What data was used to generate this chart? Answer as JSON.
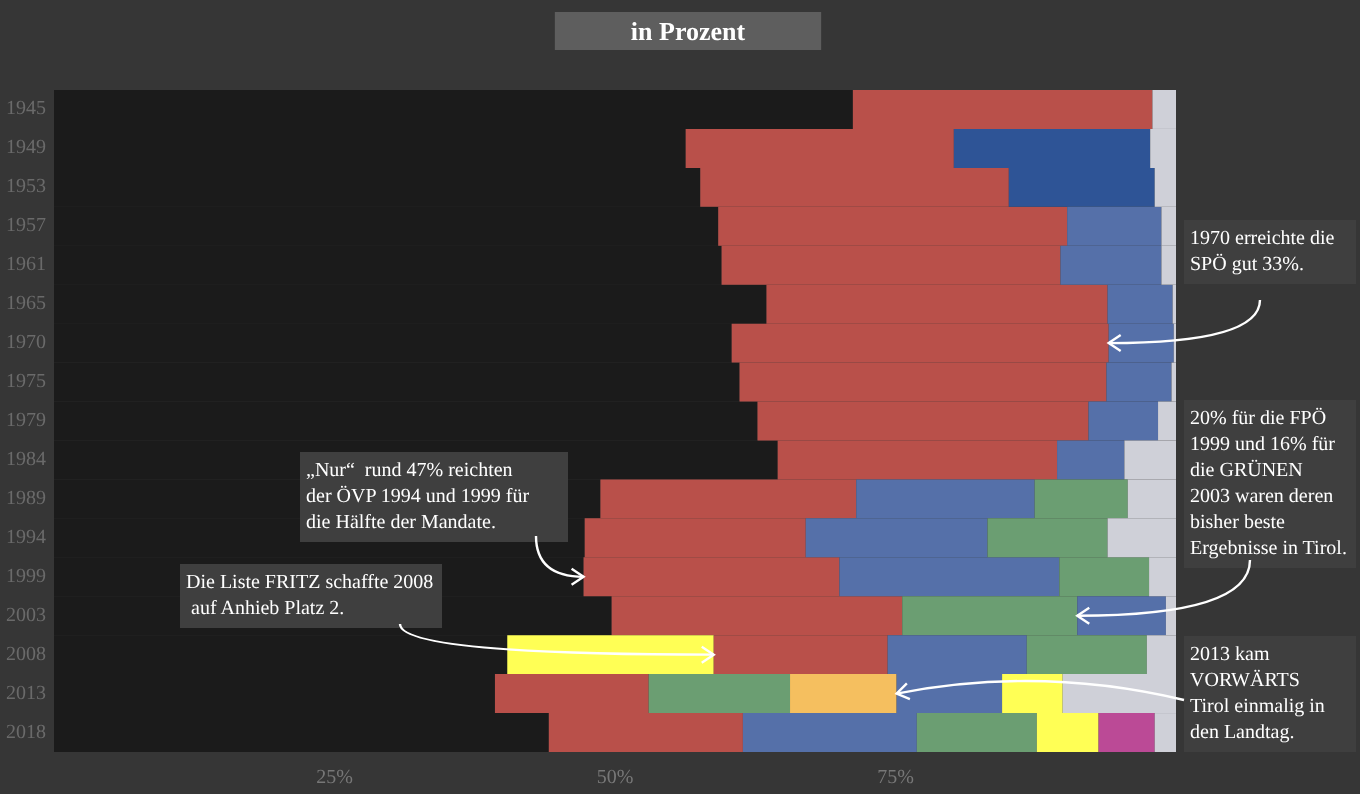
{
  "chart_data": {
    "type": "bar",
    "title": "in Prozent",
    "orientation": "horizontal",
    "stacked": true,
    "categories": [
      "1945",
      "1949",
      "1953",
      "1957",
      "1961",
      "1965",
      "1970",
      "1975",
      "1979",
      "1984",
      "1989",
      "1994",
      "1999",
      "2003",
      "2008",
      "2013",
      "2018"
    ],
    "xlim": [
      0,
      100
    ],
    "xticks": [
      {
        "value": 25,
        "label": "25%"
      },
      {
        "value": 50,
        "label": "50%"
      },
      {
        "value": 75,
        "label": "75%"
      }
    ],
    "series": [
      {
        "values": [
          71.2,
          56.3,
          57.6,
          59.2,
          59.5,
          63.5,
          60.4,
          61.1,
          62.7,
          64.5,
          48.7,
          47.3,
          47.2,
          49.7,
          40.4,
          39.3,
          44.1
        ],
        "colors": [
          "#1b1b1b",
          "#1b1b1b",
          "#1b1b1b",
          "#1b1b1b",
          "#1b1b1b",
          "#1b1b1b",
          "#1b1b1b",
          "#1b1b1b",
          "#1b1b1b",
          "#1b1b1b",
          "#1b1b1b",
          "#1b1b1b",
          "#1b1b1b",
          "#1b1b1b",
          "#1b1b1b",
          "#1b1b1b",
          "#1b1b1b"
        ]
      },
      {
        "values": [
          26.7,
          23.9,
          27.5,
          31.1,
          30.2,
          30.4,
          33.6,
          32.7,
          29.5,
          24.9,
          22.8,
          19.7,
          22.8,
          25.9,
          18.4,
          13.7,
          17.3
        ],
        "colors": [
          "#b9504a",
          "#b9504a",
          "#b9504a",
          "#b9504a",
          "#b9504a",
          "#b9504a",
          "#b9504a",
          "#b9504a",
          "#b9504a",
          "#b9504a",
          "#b9504a",
          "#b9504a",
          "#b9504a",
          "#b9504a",
          "#ffff55",
          "#b9504a",
          "#b9504a"
        ]
      },
      {
        "values": [
          2.1,
          17.5,
          13.0,
          8.4,
          9.0,
          5.8,
          5.8,
          5.8,
          6.2,
          6.0,
          15.9,
          16.2,
          19.6,
          15.6,
          15.5,
          12.6,
          15.5
        ],
        "colors": [
          "#cfd0d8",
          "#2e5496",
          "#2e5496",
          "#5570a9",
          "#5570a9",
          "#5570a9",
          "#5570a9",
          "#5570a9",
          "#5570a9",
          "#5570a9",
          "#5570a9",
          "#5570a9",
          "#5570a9",
          "#6b9e72",
          "#b9504a",
          "#6b9e72",
          "#5570a9"
        ]
      },
      {
        "values": [
          null,
          2.3,
          1.9,
          1.3,
          1.3,
          0.3,
          0.2,
          0.4,
          1.6,
          4.6,
          8.3,
          10.7,
          8.0,
          7.9,
          12.4,
          9.5,
          10.7
        ],
        "colors": [
          null,
          "#cfd0d8",
          "#cfd0d8",
          "#cfd0d8",
          "#cfd0d8",
          "#cfd0d8",
          "#cfd0d8",
          "#cfd0d8",
          "#cfd0d8",
          "#cfd0d8",
          "#6b9e72",
          "#6b9e72",
          "#6b9e72",
          "#5570a9",
          "#5570a9",
          "#f5bf5f",
          "#6b9e72"
        ]
      },
      {
        "values": [
          null,
          null,
          null,
          null,
          null,
          null,
          null,
          null,
          null,
          null,
          4.3,
          6.1,
          2.4,
          0.9,
          10.7,
          9.4,
          5.5
        ],
        "colors": [
          null,
          null,
          null,
          null,
          null,
          null,
          null,
          null,
          null,
          null,
          "#cfd0d8",
          "#cfd0d8",
          "#cfd0d8",
          "#cfd0d8",
          "#6b9e72",
          "#5570a9",
          "#ffff55"
        ]
      },
      {
        "values": [
          null,
          null,
          null,
          null,
          null,
          null,
          null,
          null,
          null,
          null,
          null,
          null,
          null,
          null,
          2.6,
          5.4,
          5.0
        ],
        "colors": [
          null,
          null,
          null,
          null,
          null,
          null,
          null,
          null,
          null,
          null,
          null,
          null,
          null,
          null,
          "#cfd0d8",
          "#ffff55",
          "#bb4a96"
        ]
      },
      {
        "values": [
          null,
          null,
          null,
          null,
          null,
          null,
          null,
          null,
          null,
          null,
          null,
          null,
          null,
          null,
          null,
          10.1,
          1.9
        ],
        "colors": [
          null,
          null,
          null,
          null,
          null,
          null,
          null,
          null,
          null,
          null,
          null,
          null,
          null,
          null,
          null,
          "#cfd0d8",
          "#cfd0d8"
        ]
      }
    ],
    "annotations": [
      {
        "text": "„Nur“  rund 47% reichten der ÖVP 1994 und 1999 für die Hälfte der Mandate.",
        "x": 47.2,
        "y": "1999"
      },
      {
        "text": "1970 erreichte die SPÖ gut 33%.",
        "x": 94.0,
        "y": "1970"
      },
      {
        "text": "20% für die FPÖ 1999 und 16% für die GRÜNEN 2003 waren deren bisher beste Ergebnisse in Tirol.",
        "x": 91.2,
        "y": "2003"
      },
      {
        "text": "Die Liste FRITZ schaffte 2008 auf Anhieb Platz 2.",
        "x": 58.8,
        "y": "2008"
      },
      {
        "text": "2013 kam VORWÄRTS Tirol einmalig in den Landtag.",
        "x": 75.1,
        "y": "2013"
      }
    ]
  }
}
